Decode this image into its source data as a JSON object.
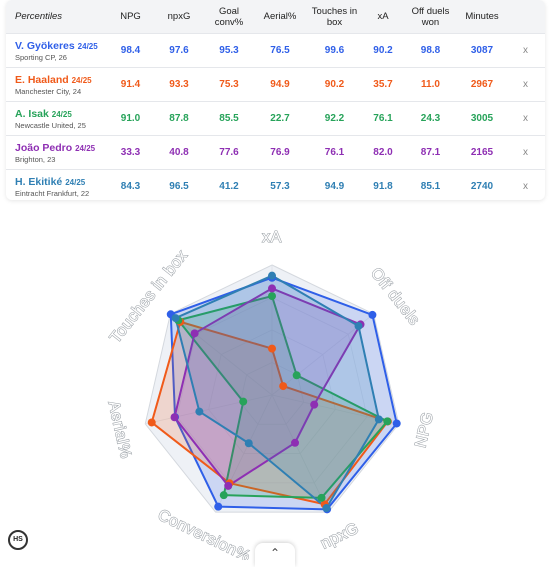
{
  "table": {
    "headers": {
      "percentiles": "Percentiles",
      "npg": "NPG",
      "npxg": "npxG",
      "goal_conv_l1": "Goal",
      "goal_conv_l2": "conv%",
      "aerial": "Aerial%",
      "touches_l1": "Touches in",
      "touches_l2": "box",
      "xa": "xA",
      "off_duels_l1": "Off duels",
      "off_duels_l2": "won",
      "minutes": "Minutes"
    },
    "remove_label": "x",
    "rows": [
      {
        "name": "V. Gyökeres",
        "season": "24/25",
        "club": "Sporting CP, 26",
        "color": "#2f5fe8",
        "npg": "98.4",
        "npxg": "97.6",
        "conv": "95.3",
        "aerial": "76.5",
        "touches": "99.6",
        "xa": "90.2",
        "duels": "98.8",
        "minutes": "3087"
      },
      {
        "name": "E. Haaland",
        "season": "24/25",
        "club": "Manchester City, 24",
        "color": "#f05a1a",
        "npg": "91.4",
        "npxg": "93.3",
        "conv": "75.3",
        "aerial": "94.9",
        "touches": "90.2",
        "xa": "35.7",
        "duels": "11.0",
        "minutes": "2967"
      },
      {
        "name": "A. Isak",
        "season": "24/25",
        "club": "Newcastle United, 25",
        "color": "#27a35a",
        "npg": "91.0",
        "npxg": "87.8",
        "conv": "85.5",
        "aerial": "22.7",
        "touches": "92.2",
        "xa": "76.1",
        "duels": "24.3",
        "minutes": "3005"
      },
      {
        "name": "João Pedro",
        "season": "24/25",
        "club": "Brighton, 23",
        "color": "#8e2fb3",
        "npg": "33.3",
        "npxg": "40.8",
        "conv": "77.6",
        "aerial": "76.9",
        "touches": "76.1",
        "xa": "82.0",
        "duels": "87.1",
        "minutes": "2165"
      },
      {
        "name": "H. Ekitiké",
        "season": "24/25",
        "club": "Eintracht Frankfurt, 22",
        "color": "#2f7fb3",
        "npg": "84.3",
        "npxg": "96.5",
        "conv": "41.2",
        "aerial": "57.3",
        "touches": "94.9",
        "xa": "91.8",
        "duels": "85.1",
        "minutes": "2740"
      }
    ]
  },
  "chart_data": {
    "type": "radar",
    "axes": [
      "xA",
      "Off duels",
      "NPG",
      "npxG",
      "Conversion%",
      "Aerial%",
      "Touches in box"
    ],
    "range": [
      0,
      100
    ],
    "series": [
      {
        "name": "V. Gyökeres",
        "color": "#2f5fe8",
        "values": [
          90.2,
          98.8,
          98.4,
          97.6,
          95.3,
          76.5,
          99.6
        ]
      },
      {
        "name": "E. Haaland",
        "color": "#f05a1a",
        "values": [
          35.7,
          11.0,
          91.4,
          93.3,
          75.3,
          94.9,
          90.2
        ]
      },
      {
        "name": "A. Isak",
        "color": "#27a35a",
        "values": [
          76.1,
          24.3,
          91.0,
          87.8,
          85.5,
          22.7,
          92.2
        ]
      },
      {
        "name": "João Pedro",
        "color": "#8e2fb3",
        "values": [
          82.0,
          87.1,
          33.3,
          40.8,
          77.6,
          76.9,
          76.1
        ]
      },
      {
        "name": "H. Ekitiké",
        "color": "#2f7fb3",
        "values": [
          91.8,
          85.1,
          84.3,
          96.5,
          41.2,
          57.3,
          94.9
        ]
      }
    ]
  },
  "badge_text": "HS",
  "toggle_icon": "chevron-up-icon"
}
